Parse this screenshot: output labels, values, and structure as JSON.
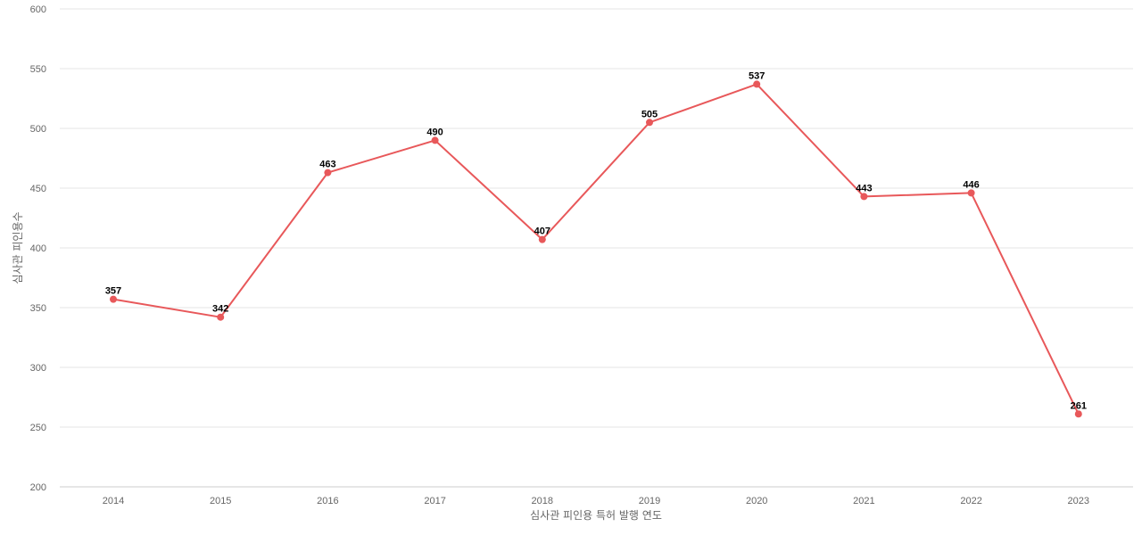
{
  "chart_data": {
    "type": "line",
    "title": "",
    "xlabel": "심사관 피인용 특허 발행 연도",
    "ylabel": "심사관 피인용수",
    "categories": [
      "2014",
      "2015",
      "2016",
      "2017",
      "2018",
      "2019",
      "2020",
      "2021",
      "2022",
      "2023"
    ],
    "series": [
      {
        "values": [
          357,
          342,
          463,
          490,
          407,
          505,
          537,
          443,
          446,
          261
        ]
      }
    ],
    "ylim": [
      200,
      600
    ],
    "yticks": [
      200,
      250,
      300,
      350,
      400,
      450,
      500,
      550,
      600
    ],
    "grid": true,
    "legend": "none",
    "data_labels": true,
    "colors": {
      "line": "#e8585a",
      "grid": "#e6e6e6",
      "tick_text": "#666666",
      "label_text": "#000000"
    }
  }
}
